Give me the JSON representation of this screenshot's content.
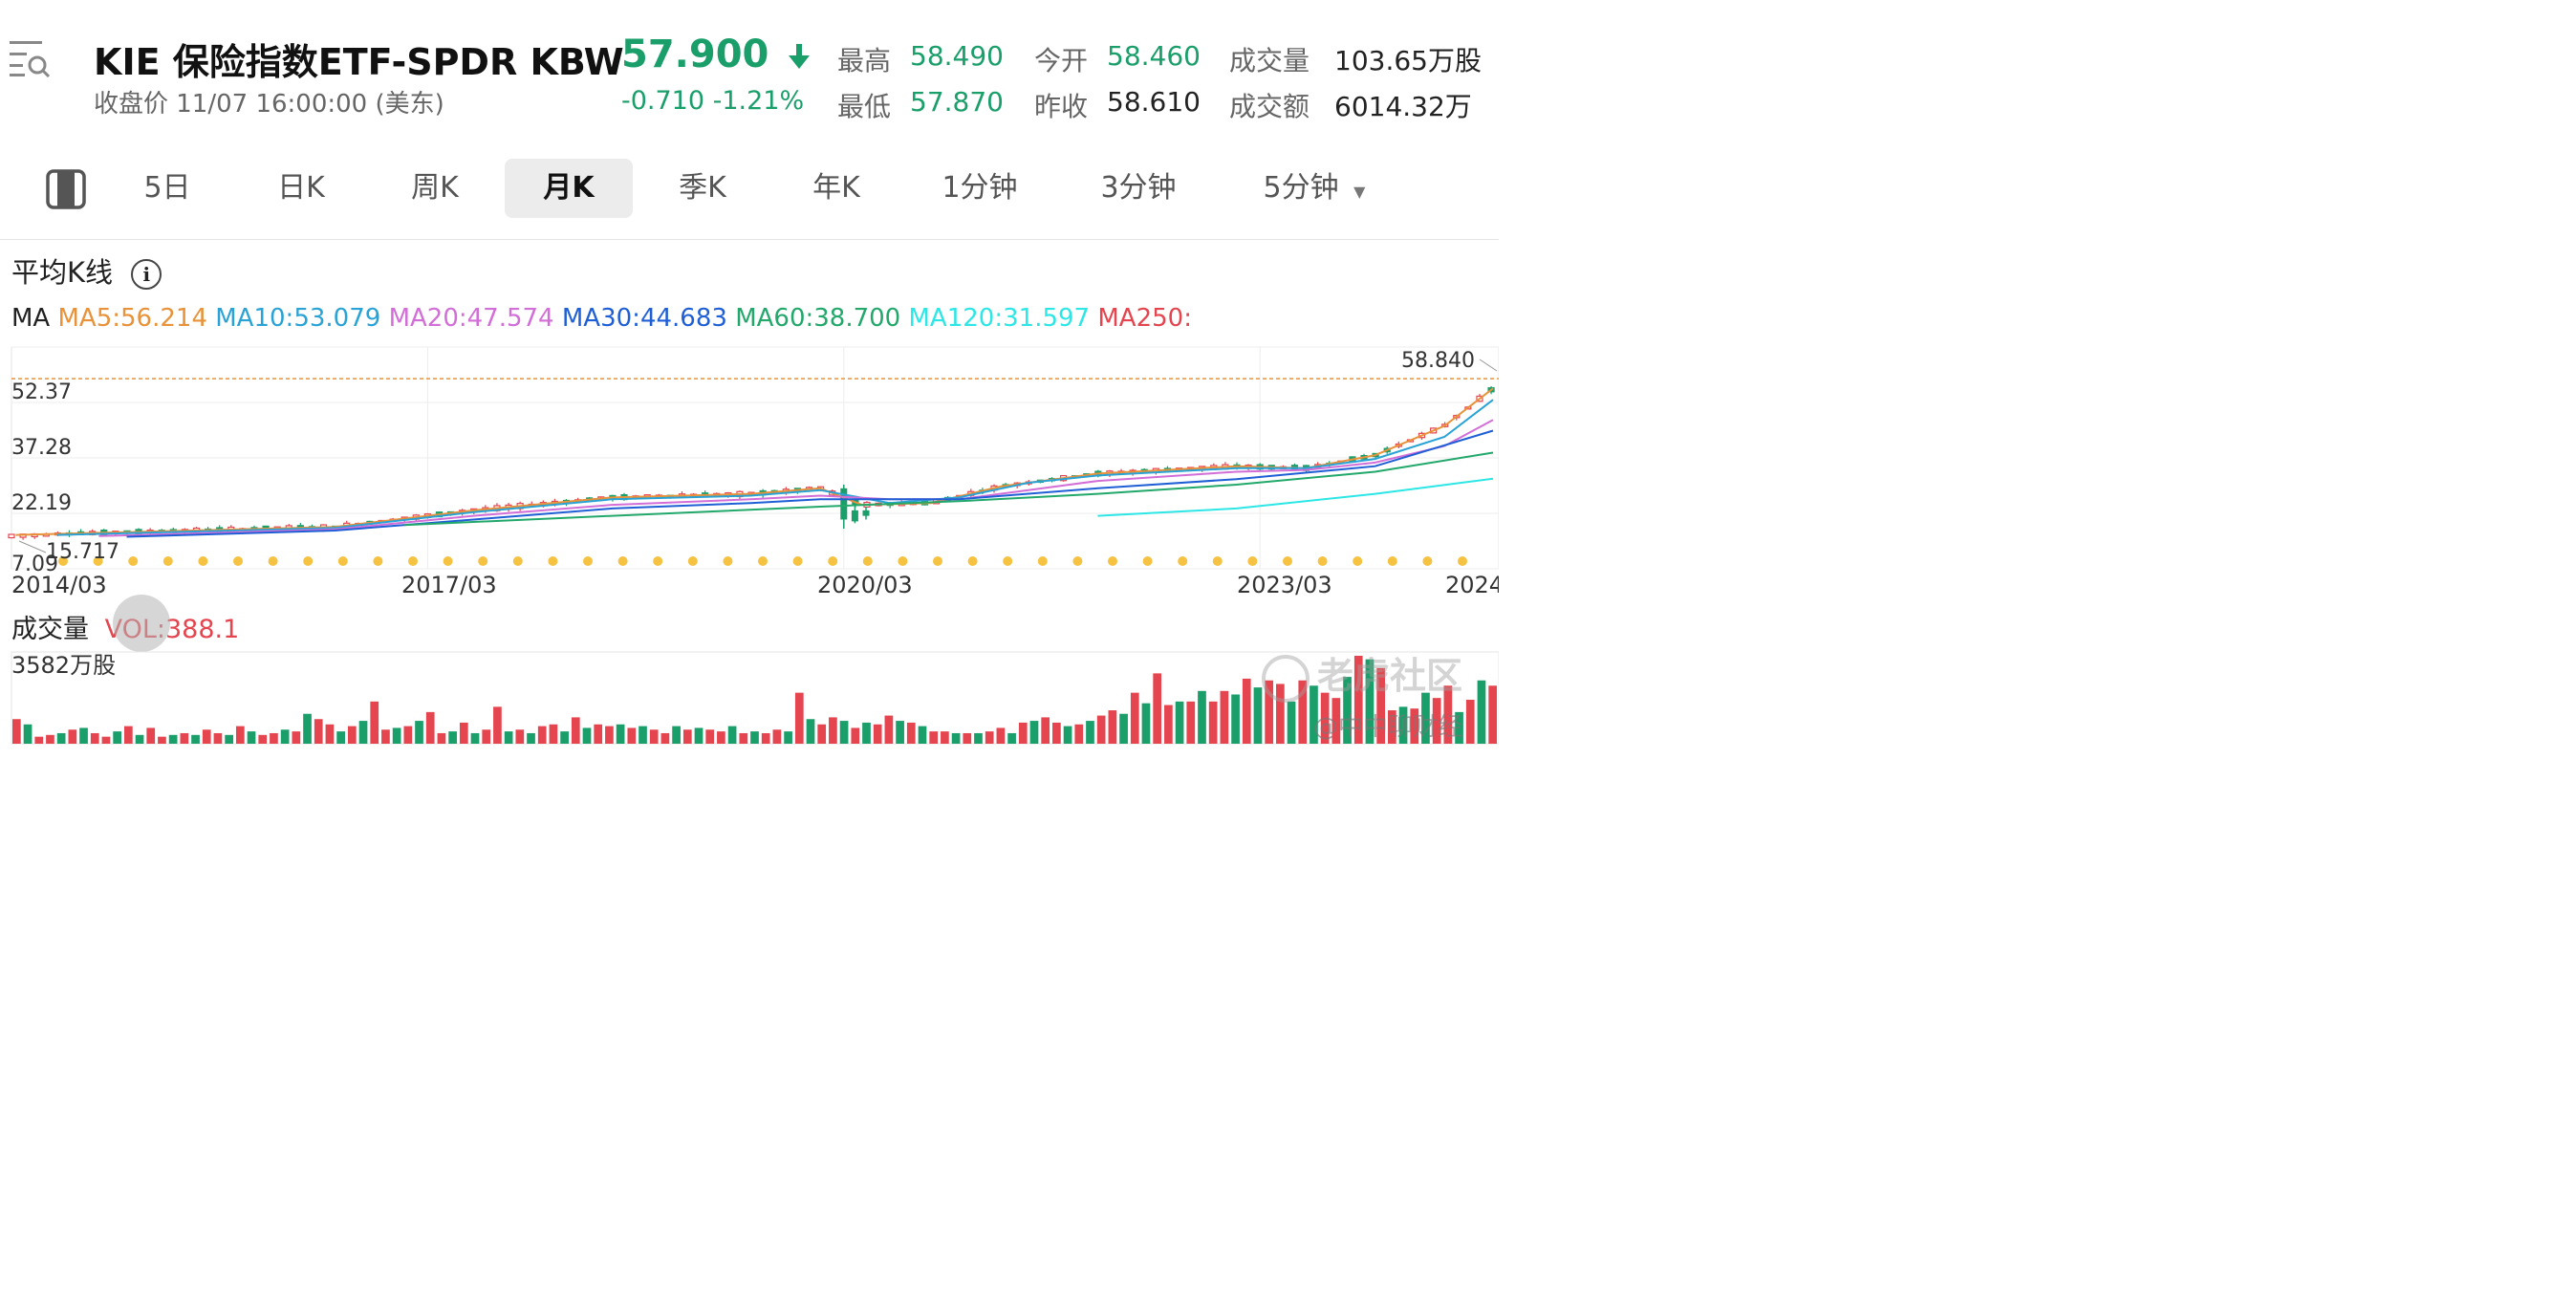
{
  "header": {
    "symbol_title": "KIE  保险指数ETF-SPDR KBW",
    "subtitle": "收盘价  11/07 16:00:00 (美东)",
    "price": "57.900",
    "change": "-0.710  -1.21%",
    "stats": [
      {
        "label": "最高",
        "value": "58.490",
        "color": "green"
      },
      {
        "label": "今开",
        "value": "58.460",
        "color": "green"
      },
      {
        "label": "成交量",
        "value": "103.65万股",
        "color": "dark"
      },
      {
        "label": "最低",
        "value": "57.870",
        "color": "green"
      },
      {
        "label": "昨收",
        "value": "58.610",
        "color": "dark"
      },
      {
        "label": "成交额",
        "value": "6014.32万",
        "color": "dark"
      }
    ]
  },
  "tabs": [
    "5日",
    "日K",
    "周K",
    "月K",
    "季K",
    "年K",
    "1分钟",
    "3分钟",
    "5分钟"
  ],
  "active_tab": "月K",
  "section_title": "平均K线",
  "ma_legend": [
    {
      "text": "MA",
      "color": "#222222"
    },
    {
      "text": "MA5:56.214",
      "color": "#e8923a"
    },
    {
      "text": "MA10:53.079",
      "color": "#29a3d6"
    },
    {
      "text": "MA20:47.574",
      "color": "#d26ed8"
    },
    {
      "text": "MA30:44.683",
      "color": "#1f5fd6"
    },
    {
      "text": "MA60:38.700",
      "color": "#22a86b"
    },
    {
      "text": "MA120:31.597",
      "color": "#2de6e6"
    },
    {
      "text": "MA250:",
      "color": "#e5454f"
    }
  ],
  "volume_label": "成交量",
  "volume_value": "VOL:388.1",
  "watermark": "老虎社区",
  "credit": "@中中聊财经",
  "colors": {
    "up": "#e5454f",
    "down": "#1a9e6a",
    "dividend_marker": "#f5c242",
    "ref_line": "#e8923a"
  },
  "chart_data": {
    "type": "candlestick",
    "price_axis": {
      "ticks": [
        "67.46",
        "52.37",
        "37.28",
        "22.19",
        "7.09"
      ],
      "min": 7.09,
      "max": 67.46
    },
    "time_axis": {
      "labels": [
        "2014/03",
        "2017/03",
        "2020/03",
        "2023/03",
        "2024"
      ],
      "start": "2014-03",
      "end": "2024-11"
    },
    "high_marker": "58.840",
    "low_marker": "15.717",
    "ma_series": [
      {
        "name": "MA5",
        "points": [
          [
            2014.2,
            16.3
          ],
          [
            2016.5,
            18.5
          ],
          [
            2017.5,
            23.0
          ],
          [
            2018.5,
            26.5
          ],
          [
            2019.5,
            27.5
          ],
          [
            2020.0,
            29.0
          ],
          [
            2020.3,
            24.5
          ],
          [
            2020.8,
            25.0
          ],
          [
            2021.3,
            29.5
          ],
          [
            2022.0,
            33.0
          ],
          [
            2022.5,
            34.0
          ],
          [
            2023.0,
            35.0
          ],
          [
            2023.5,
            34.5
          ],
          [
            2024.0,
            38.0
          ],
          [
            2024.5,
            46.0
          ],
          [
            2024.85,
            56.2
          ]
        ]
      },
      {
        "name": "MA10",
        "points": [
          [
            2014.5,
            16.3
          ],
          [
            2016.5,
            18.2
          ],
          [
            2017.5,
            22.5
          ],
          [
            2018.5,
            26.0
          ],
          [
            2019.5,
            27.0
          ],
          [
            2020.0,
            28.5
          ],
          [
            2020.5,
            25.0
          ],
          [
            2021.0,
            26.5
          ],
          [
            2021.5,
            30.5
          ],
          [
            2022.0,
            32.5
          ],
          [
            2023.0,
            34.5
          ],
          [
            2023.5,
            34.5
          ],
          [
            2024.0,
            37.0
          ],
          [
            2024.5,
            43.0
          ],
          [
            2024.85,
            53.1
          ]
        ]
      },
      {
        "name": "MA20",
        "points": [
          [
            2014.8,
            16.0
          ],
          [
            2016.5,
            17.8
          ],
          [
            2017.5,
            21.5
          ],
          [
            2018.5,
            24.5
          ],
          [
            2019.5,
            26.0
          ],
          [
            2020.0,
            27.0
          ],
          [
            2020.5,
            26.0
          ],
          [
            2021.0,
            26.0
          ],
          [
            2021.5,
            28.5
          ],
          [
            2022.0,
            31.0
          ],
          [
            2023.0,
            33.5
          ],
          [
            2023.5,
            34.0
          ],
          [
            2024.0,
            36.0
          ],
          [
            2024.5,
            40.5
          ],
          [
            2024.85,
            47.6
          ]
        ]
      },
      {
        "name": "MA30",
        "points": [
          [
            2015.0,
            15.8
          ],
          [
            2016.5,
            17.5
          ],
          [
            2017.5,
            20.5
          ],
          [
            2018.5,
            23.5
          ],
          [
            2019.5,
            25.0
          ],
          [
            2020.0,
            26.0
          ],
          [
            2021.0,
            26.0
          ],
          [
            2022.0,
            29.0
          ],
          [
            2023.0,
            31.5
          ],
          [
            2024.0,
            35.0
          ],
          [
            2024.85,
            44.7
          ]
        ]
      },
      {
        "name": "MA60",
        "points": [
          [
            2017.0,
            19.0
          ],
          [
            2018.5,
            21.5
          ],
          [
            2020.0,
            24.0
          ],
          [
            2021.0,
            25.5
          ],
          [
            2022.0,
            27.5
          ],
          [
            2023.0,
            30.0
          ],
          [
            2024.0,
            33.5
          ],
          [
            2024.85,
            38.7
          ]
        ]
      },
      {
        "name": "MA120",
        "points": [
          [
            2022.0,
            21.5
          ],
          [
            2023.0,
            23.5
          ],
          [
            2024.0,
            27.5
          ],
          [
            2024.85,
            31.6
          ]
        ]
      }
    ],
    "volume_axis": {
      "max_label": "3582万股"
    }
  }
}
